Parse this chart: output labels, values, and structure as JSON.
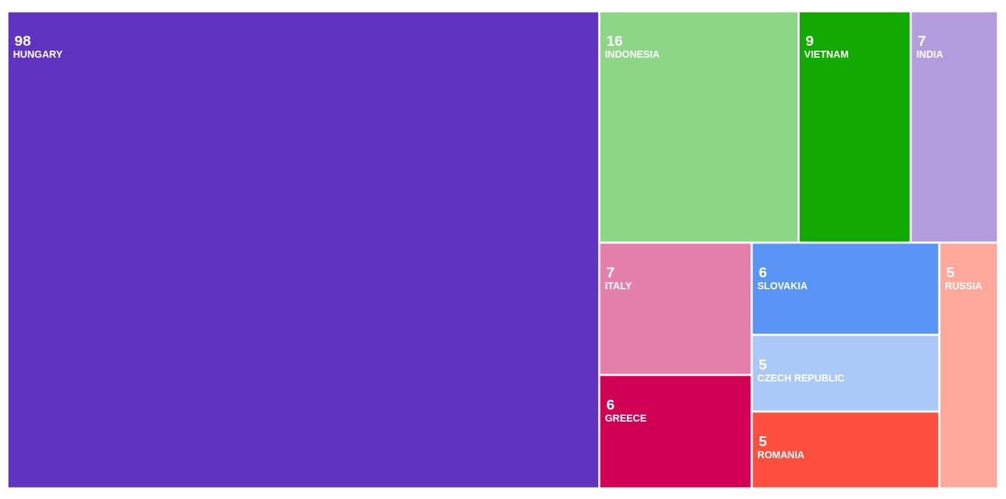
{
  "chart_data": {
    "type": "other",
    "categories": [
      "HUNGARY",
      "INDONESIA",
      "VIETNAM",
      "INDIA",
      "ITALY",
      "GREECE",
      "SLOVAKIA",
      "CZECH REPUBLIC",
      "ROMANIA",
      "RUSSIA"
    ],
    "values": [
      98,
      16,
      9,
      7,
      7,
      6,
      6,
      5,
      5,
      5
    ],
    "colors": [
      "#5e34c0",
      "#8dd685",
      "#12aa00",
      "#b39ddf",
      "#e57fab",
      "#d10054",
      "#5895f5",
      "#abc9f8",
      "#ff4f3f",
      "#ffa89c"
    ],
    "data_labels": true
  }
}
